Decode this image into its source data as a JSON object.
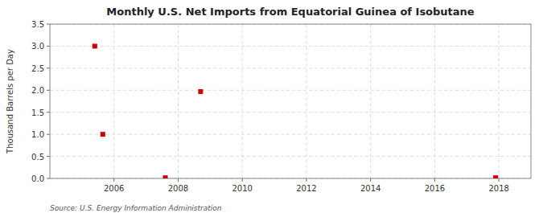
{
  "chart_data": {
    "type": "scatter",
    "title": "Monthly U.S. Net Imports from Equatorial Guinea of Isobutane",
    "y_label": "Thousand Barrels per Day",
    "annotations": [
      "Source: U.S. Energy Information Administration"
    ],
    "x": [
      2005.4,
      2005.65,
      2007.6,
      2008.7,
      2017.9
    ],
    "values": [
      3.0,
      1.0,
      0.015,
      1.97,
      0.015
    ],
    "color": "#cc0000",
    "marker": "square",
    "grid": true,
    "xlim": [
      2004.0,
      2019.0
    ],
    "ylim": [
      0.0,
      3.5
    ],
    "xticks": [
      2006,
      2008,
      2010,
      2012,
      2014,
      2016,
      2018
    ],
    "yticks": [
      {
        "value": 0.0,
        "label": "0.0"
      },
      0.5,
      {
        "value": 1.0,
        "label": "1.0"
      },
      1.5,
      {
        "value": 2.0,
        "label": "2.0"
      },
      2.5,
      {
        "value": 3.0,
        "label": "3.0"
      },
      3.5
    ]
  }
}
